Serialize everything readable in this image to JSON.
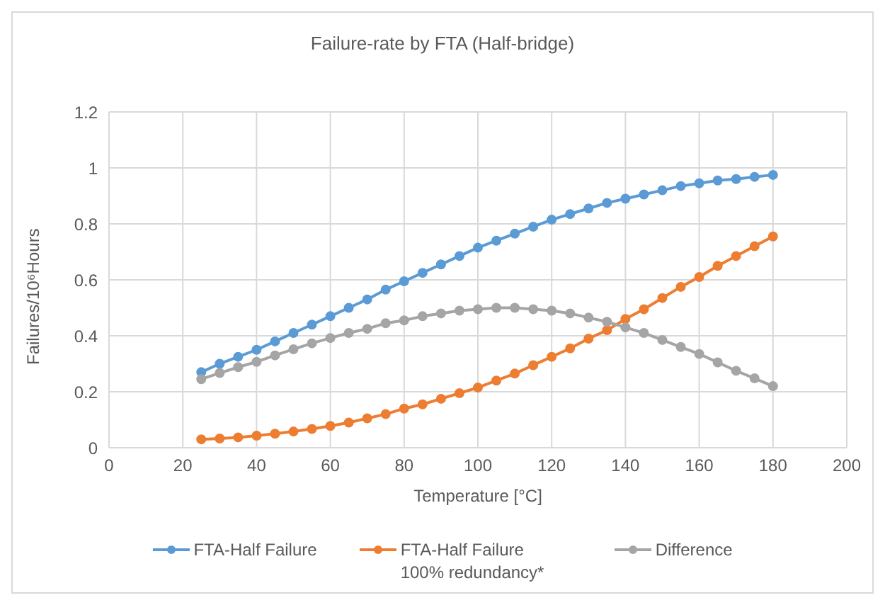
{
  "chart_data": {
    "type": "line",
    "title": "Failure-rate by FTA (Half-bridge)",
    "xlabel": "Temperature [°C]",
    "ylabel": "Failures/10⁶Hours",
    "x": [
      25,
      30,
      35,
      40,
      45,
      50,
      55,
      60,
      65,
      70,
      75,
      80,
      85,
      90,
      95,
      100,
      105,
      110,
      115,
      120,
      125,
      130,
      135,
      140,
      145,
      150,
      155,
      160,
      165,
      170,
      175,
      180
    ],
    "series": [
      {
        "name": "FTA-Half Failure",
        "color": "#5b9bd5",
        "values": [
          0.27,
          0.3,
          0.325,
          0.35,
          0.38,
          0.41,
          0.44,
          0.47,
          0.5,
          0.53,
          0.565,
          0.595,
          0.625,
          0.655,
          0.685,
          0.715,
          0.74,
          0.765,
          0.79,
          0.815,
          0.835,
          0.855,
          0.875,
          0.89,
          0.905,
          0.92,
          0.935,
          0.945,
          0.955,
          0.96,
          0.968,
          0.975
        ]
      },
      {
        "name": "FTA-Half Failure 100% redundancy*",
        "color": "#ed7d31",
        "values": [
          0.03,
          0.033,
          0.037,
          0.043,
          0.05,
          0.058,
          0.067,
          0.078,
          0.09,
          0.105,
          0.12,
          0.14,
          0.155,
          0.175,
          0.195,
          0.215,
          0.24,
          0.265,
          0.295,
          0.325,
          0.355,
          0.39,
          0.42,
          0.46,
          0.495,
          0.535,
          0.575,
          0.61,
          0.65,
          0.685,
          0.72,
          0.755
        ]
      },
      {
        "name": "Difference",
        "color": "#a5a5a5",
        "values": [
          0.245,
          0.267,
          0.288,
          0.307,
          0.33,
          0.352,
          0.373,
          0.392,
          0.41,
          0.425,
          0.445,
          0.455,
          0.47,
          0.48,
          0.49,
          0.495,
          0.5,
          0.5,
          0.495,
          0.49,
          0.48,
          0.465,
          0.45,
          0.43,
          0.41,
          0.385,
          0.36,
          0.335,
          0.305,
          0.275,
          0.248,
          0.22
        ]
      }
    ],
    "xlim": [
      0,
      200
    ],
    "xticks": [
      0,
      20,
      40,
      60,
      80,
      100,
      120,
      140,
      160,
      180,
      200
    ],
    "ylim": [
      0,
      1.2
    ],
    "yticks": [
      0,
      0.2,
      0.4,
      0.6,
      0.8,
      1,
      1.2
    ],
    "grid": true,
    "legend": "bottom",
    "marker": "circle",
    "line_style": "solid"
  }
}
